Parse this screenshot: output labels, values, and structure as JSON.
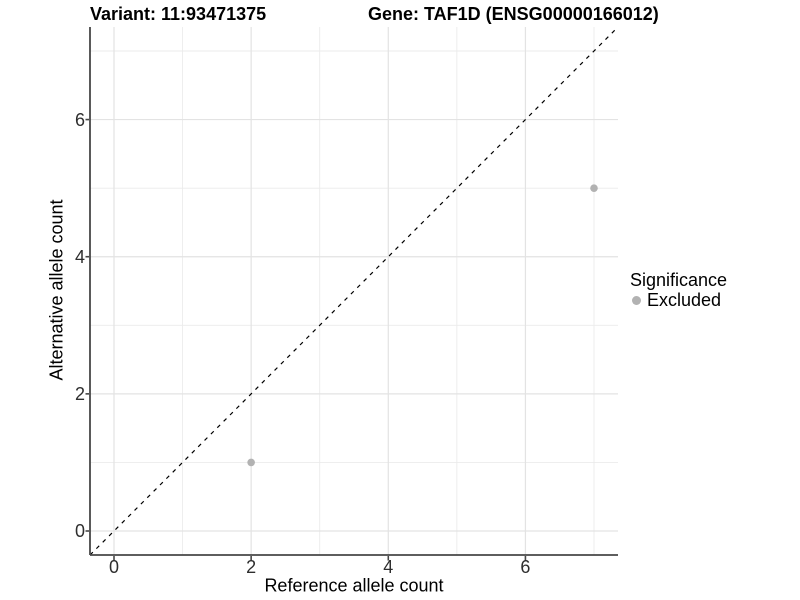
{
  "figure": {
    "title_variant": "Variant: 11:93471375",
    "title_gene": "Gene: TAF1D (ENSG00000166012)"
  },
  "axes": {
    "x_label": "Reference allele count",
    "y_label": "Alternative allele count"
  },
  "legend": {
    "title": "Significance",
    "items": [
      {
        "label": "Excluded",
        "color": "#b2b2b2"
      }
    ]
  },
  "chart_data": {
    "type": "scatter",
    "title": "Variant: 11:93471375 — Gene: TAF1D (ENSG00000166012)",
    "xlabel": "Reference allele count",
    "ylabel": "Alternative allele count",
    "xlim": [
      -0.35,
      7.35
    ],
    "ylim": [
      -0.35,
      7.35
    ],
    "major_ticks": [
      0,
      2,
      4,
      6
    ],
    "minor_gridlines": [
      1,
      3,
      5,
      7
    ],
    "grid": true,
    "legend_position": "right",
    "series": [
      {
        "name": "Excluded",
        "color": "#b2b2b2",
        "points": [
          {
            "x": 2,
            "y": 1
          },
          {
            "x": 7,
            "y": 5
          }
        ]
      }
    ],
    "reference_line": {
      "type": "identity",
      "style": "dashed",
      "color": "#000000"
    }
  },
  "style": {
    "grid_major_color": "#e3e3e3",
    "grid_minor_color": "#ebebeb",
    "axis_line_color": "#474747",
    "tick_color": "#474747",
    "point_radius": 3.8
  }
}
